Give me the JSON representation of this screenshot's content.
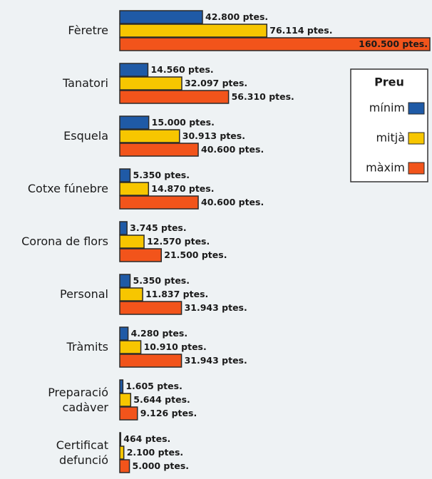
{
  "chart_data": {
    "type": "bar",
    "orientation": "horizontal",
    "categories": [
      "Fèretre",
      "Tanatori",
      "Esquela",
      "Cotxe fúnebre",
      "Corona de flors",
      "Personal",
      "Tràmits",
      "Preparació\ncadàver",
      "Certificat\ndefunció"
    ],
    "legend_title": "Preu",
    "legend_position": "upper right",
    "series": [
      {
        "name": "mínim",
        "color": "#1f5aa6",
        "values": [
          42800,
          14560,
          15000,
          5350,
          3745,
          5350,
          4280,
          1605,
          464
        ],
        "value_labels": [
          "42.800 ptes.",
          "14.560 ptes.",
          "15.000 ptes.",
          "5.350 ptes.",
          "3.745 ptes.",
          "5.350 ptes.",
          "4.280 ptes.",
          "1.605 ptes.",
          "464 ptes."
        ]
      },
      {
        "name": "mitjà",
        "color": "#f7c600",
        "values": [
          76114,
          32097,
          30913,
          14870,
          12570,
          11837,
          10910,
          5644,
          2100
        ],
        "value_labels": [
          "76.114 ptes.",
          "32.097 ptes.",
          "30.913 ptes.",
          "14.870 ptes.",
          "12.570 ptes.",
          "11.837 ptes.",
          "10.910 ptes.",
          "5.644 ptes.",
          "2.100 ptes."
        ]
      },
      {
        "name": "màxim",
        "color": "#f2541b",
        "values": [
          160500,
          56310,
          40600,
          40600,
          21500,
          31943,
          31943,
          9126,
          5000
        ],
        "value_labels": [
          "160.500 ptes.",
          "56.310 ptes.",
          "40.600 ptes.",
          "40.600 ptes.",
          "21.500 ptes.",
          "31.943 ptes.",
          "31.943 ptes.",
          "9.126 ptes.",
          "5.000 ptes."
        ]
      }
    ]
  }
}
